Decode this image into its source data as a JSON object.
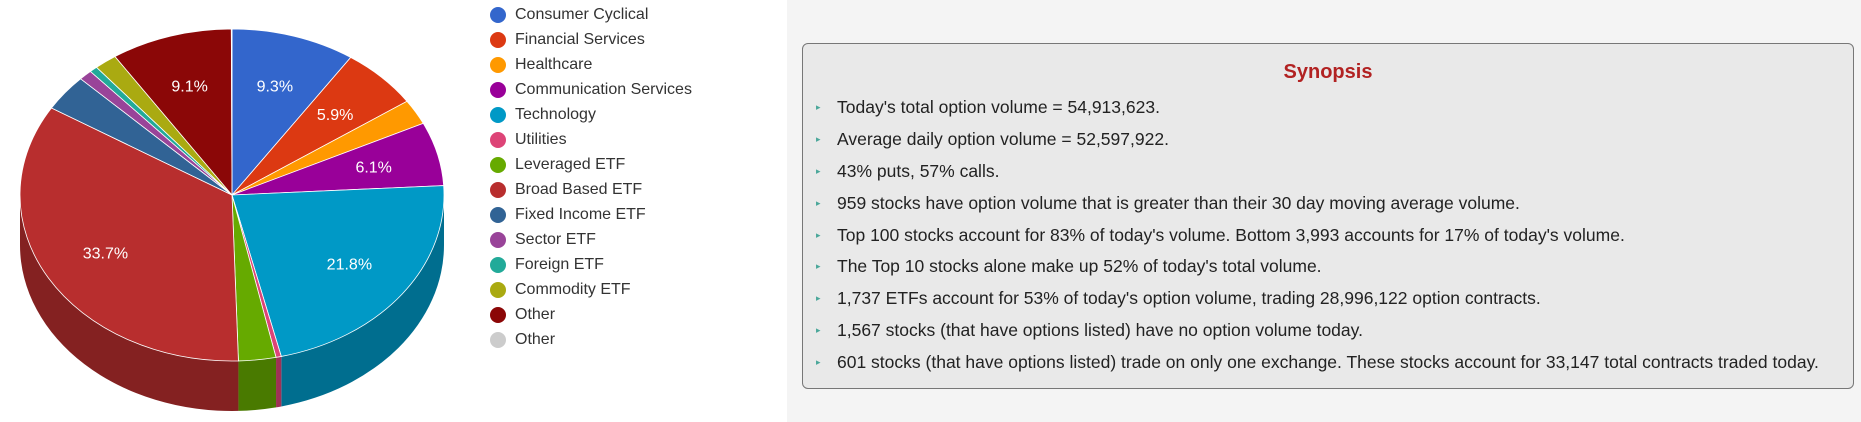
{
  "chart_data": {
    "type": "pie",
    "style": "3d",
    "slices": [
      {
        "label": "Consumer Cyclical",
        "value": 9.3,
        "color": "#3366cc",
        "show_label": true
      },
      {
        "label": "Financial Services",
        "value": 5.9,
        "color": "#dc3912",
        "show_label": true
      },
      {
        "label": "Healthcare",
        "value": 2.4,
        "color": "#ff9900",
        "show_label": false
      },
      {
        "label": "Communication Services",
        "value": 6.1,
        "color": "#990099",
        "show_label": true
      },
      {
        "label": "Technology",
        "value": 21.8,
        "color": "#0099c6",
        "show_label": true
      },
      {
        "label": "Utilities",
        "value": 0.4,
        "color": "#dd4477",
        "show_label": false
      },
      {
        "label": "Leveraged ETF",
        "value": 2.8,
        "color": "#66aa00",
        "show_label": false
      },
      {
        "label": "Broad Based ETF",
        "value": 33.7,
        "color": "#b82e2e",
        "show_label": true
      },
      {
        "label": "Fixed Income ETF",
        "value": 3.5,
        "color": "#316395",
        "show_label": false
      },
      {
        "label": "Sector ETF",
        "value": 1.0,
        "color": "#994499",
        "show_label": false
      },
      {
        "label": "Foreign ETF",
        "value": 0.6,
        "color": "#22aa99",
        "show_label": false
      },
      {
        "label": "Commodity ETF",
        "value": 1.7,
        "color": "#aaaa11",
        "show_label": false
      },
      {
        "label": "Other",
        "value": 9.1,
        "color": "#8b0707",
        "show_label": true
      },
      {
        "label": "Other",
        "value": 0.05,
        "color": "#cccccc",
        "show_label": false
      }
    ]
  },
  "synopsis": {
    "title": "Synopsis",
    "items": [
      "Today's total option volume = 54,913,623.",
      "Average daily option volume = 52,597,922.",
      "43% puts, 57% calls.",
      "959 stocks have option volume that is greater than their 30 day moving average volume.",
      "Top 100 stocks account for 83% of today's volume. Bottom 3,993 accounts for 17% of today's volume.",
      "The Top 10 stocks alone make up 52% of today's total volume.",
      "1,737 ETFs account for 53% of today's option volume, trading 28,996,122 option contracts.",
      "1,567 stocks (that have options listed) have no option volume today.",
      "601 stocks (that have options listed) trade on only one exchange. These stocks account for 33,147 total contracts traded today."
    ]
  }
}
